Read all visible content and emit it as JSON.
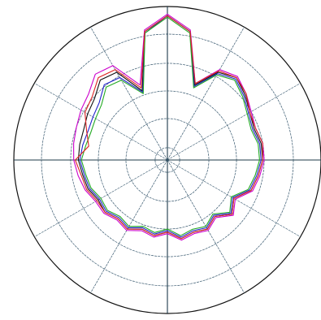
{
  "chart_data": {
    "type": "polar-line",
    "theta": [
      0,
      10,
      20,
      30,
      40,
      50,
      60,
      70,
      80,
      90,
      100,
      110,
      120,
      130,
      140,
      150,
      160,
      170,
      180,
      190,
      200,
      210,
      220,
      230,
      240,
      250,
      260,
      270,
      280,
      290,
      300,
      310,
      320,
      330,
      340,
      350
    ],
    "rlim": [
      0,
      1
    ],
    "rticks": [
      0.08,
      0.27,
      0.45,
      0.63,
      0.82,
      1
    ],
    "thetaticks": [
      0,
      30,
      60,
      90,
      120,
      150,
      180,
      210,
      240,
      270,
      300,
      330
    ],
    "grid": true,
    "series": [
      {
        "color": "#111111",
        "values": [
          0.62,
          0.62,
          0.6,
          0.62,
          0.66,
          0.7,
          0.66,
          0.52,
          0.85,
          0.94,
          0.85,
          0.48,
          0.66,
          0.68,
          0.62,
          0.6,
          0.58,
          0.58,
          0.58,
          0.56,
          0.55,
          0.52,
          0.53,
          0.5,
          0.52,
          0.48,
          0.5,
          0.47,
          0.52,
          0.5,
          0.52,
          0.48,
          0.55,
          0.5,
          0.58,
          0.6
        ]
      },
      {
        "color": "#cc00cc",
        "values": [
          0.63,
          0.63,
          0.61,
          0.63,
          0.67,
          0.71,
          0.68,
          0.53,
          0.86,
          0.95,
          0.86,
          0.52,
          0.71,
          0.73,
          0.67,
          0.65,
          0.63,
          0.62,
          0.61,
          0.59,
          0.57,
          0.54,
          0.54,
          0.51,
          0.53,
          0.49,
          0.51,
          0.48,
          0.53,
          0.51,
          0.53,
          0.49,
          0.56,
          0.51,
          0.59,
          0.61
        ]
      },
      {
        "color": "#2222cc",
        "values": [
          0.61,
          0.61,
          0.59,
          0.61,
          0.65,
          0.69,
          0.65,
          0.51,
          0.85,
          0.94,
          0.84,
          0.47,
          0.62,
          0.64,
          0.58,
          0.56,
          0.55,
          0.56,
          0.57,
          0.55,
          0.54,
          0.51,
          0.52,
          0.49,
          0.51,
          0.47,
          0.49,
          0.46,
          0.51,
          0.49,
          0.51,
          0.47,
          0.54,
          0.49,
          0.57,
          0.59
        ]
      },
      {
        "color": "#22aa22",
        "values": [
          0.6,
          0.6,
          0.58,
          0.6,
          0.64,
          0.68,
          0.64,
          0.5,
          0.84,
          0.93,
          0.84,
          0.46,
          0.6,
          0.62,
          0.56,
          0.54,
          0.53,
          0.54,
          0.56,
          0.54,
          0.53,
          0.5,
          0.51,
          0.48,
          0.5,
          0.46,
          0.48,
          0.45,
          0.5,
          0.48,
          0.5,
          0.46,
          0.53,
          0.48,
          0.56,
          0.58
        ]
      },
      {
        "color": "#dd2222",
        "values": [
          0.62,
          0.63,
          0.61,
          0.62,
          0.67,
          0.7,
          0.67,
          0.53,
          0.85,
          0.94,
          0.85,
          0.5,
          0.68,
          0.7,
          0.64,
          0.62,
          0.56,
          0.52,
          0.6,
          0.57,
          0.56,
          0.53,
          0.53,
          0.5,
          0.52,
          0.48,
          0.5,
          0.47,
          0.52,
          0.5,
          0.52,
          0.48,
          0.55,
          0.5,
          0.58,
          0.6
        ]
      }
    ]
  }
}
